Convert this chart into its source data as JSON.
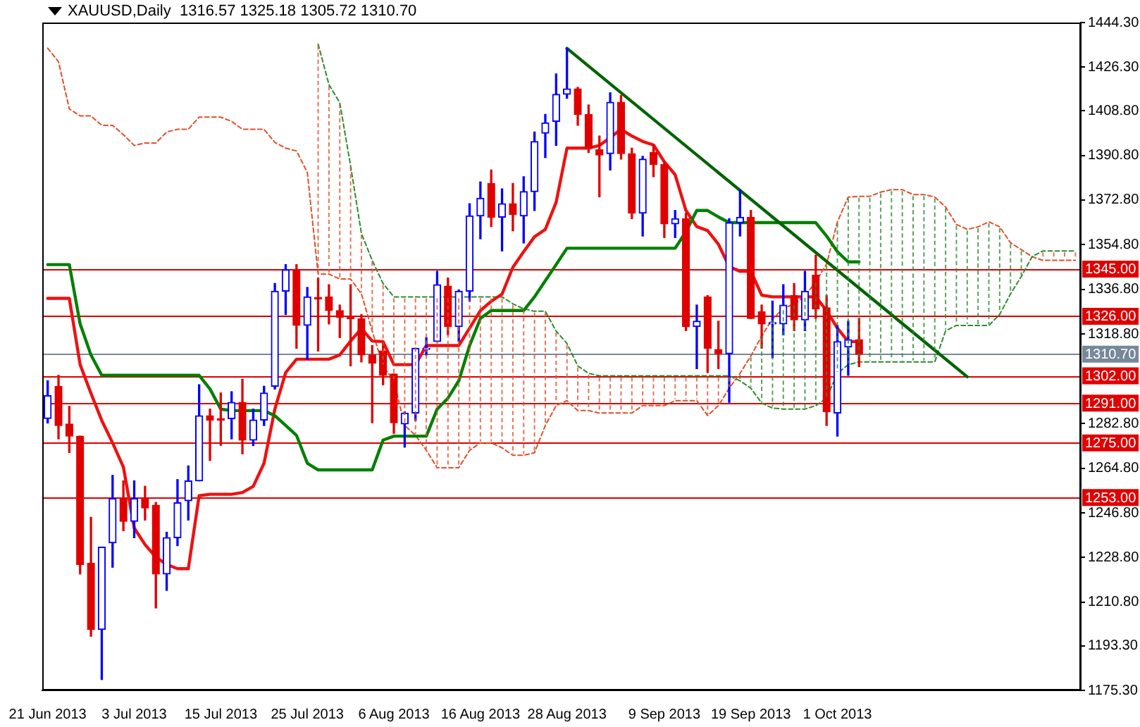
{
  "chart_data": {
    "type": "candlestick",
    "title": "XAUUSD,Daily  1316.57 1325.18 1305.72 1310.70",
    "categories": [
      "21 Jun 2013",
      null,
      null,
      null,
      null,
      null,
      null,
      null,
      "3 Jul 2013",
      null,
      null,
      null,
      null,
      null,
      null,
      null,
      "15 Jul 2013",
      null,
      null,
      null,
      null,
      null,
      null,
      null,
      "25 Jul 2013",
      null,
      null,
      null,
      null,
      null,
      null,
      null,
      "6 Aug 2013",
      null,
      null,
      null,
      null,
      null,
      null,
      null,
      "16 Aug 2013",
      null,
      null,
      null,
      null,
      null,
      null,
      null,
      "28 Aug 2013",
      null,
      null,
      null,
      null,
      null,
      null,
      null,
      null,
      "9 Sep 2013",
      null,
      null,
      null,
      null,
      null,
      null,
      null,
      "19 Sep 2013",
      null,
      null,
      null,
      null,
      null,
      null,
      null,
      "1 Oct 2013",
      null,
      null,
      null,
      null,
      null,
      null,
      null,
      null,
      null,
      null,
      null,
      null,
      null,
      null,
      null,
      null,
      null,
      null,
      null,
      null,
      null,
      null
    ],
    "ohlc": [
      [
        1284.8,
        1300,
        1283,
        1294
      ],
      [
        1297.8,
        1302.2,
        1276.6,
        1282
      ],
      [
        1282.6,
        1289.7,
        1271.1,
        1277.7
      ],
      [
        1277.7,
        1277.7,
        1222.2,
        1226
      ],
      [
        1226.5,
        1245,
        1197.1,
        1199.8
      ],
      [
        1199.8,
        1233,
        1179.7,
        1233
      ],
      [
        1234.7,
        1261.9,
        1224.9,
        1252.6
      ],
      [
        1252.6,
        1259.7,
        1239.6,
        1243.4
      ],
      [
        1243.4,
        1259.7,
        1236.8,
        1252.6
      ],
      [
        1252.6,
        1257.5,
        1243.9,
        1248.8
      ],
      [
        1249.9,
        1251,
        1208.5,
        1222.2
      ],
      [
        1222.2,
        1239,
        1215.6,
        1236.8
      ],
      [
        1236.8,
        1260.2,
        1233.6,
        1250.9
      ],
      [
        1251.7,
        1265.7,
        1243.9,
        1259.7
      ],
      [
        1259.7,
        1298.4,
        1259.7,
        1285.9
      ],
      [
        1285.9,
        1288.6,
        1267.9,
        1284.2
      ],
      [
        1284.5,
        1295.1,
        1274,
        1284.2
      ],
      [
        1284.7,
        1295.6,
        1276.6,
        1291.3
      ],
      [
        1291.3,
        1300.6,
        1270.6,
        1276.1
      ],
      [
        1276.1,
        1288.6,
        1273.9,
        1284.2
      ],
      [
        1284.2,
        1297.8,
        1282,
        1295.1
      ],
      [
        1297.8,
        1339.2,
        1296.7,
        1336.1
      ],
      [
        1336.1,
        1346.8,
        1326.7,
        1344.7
      ],
      [
        1344.7,
        1346.8,
        1313.1,
        1322.3
      ],
      [
        1322.3,
        1337.6,
        1308.7,
        1333.8
      ],
      [
        1333.5,
        1341.4,
        1312,
        1333
      ],
      [
        1333.8,
        1338.7,
        1322.9,
        1328.3
      ],
      [
        1328.3,
        1330.5,
        1317.4,
        1325.6
      ],
      [
        1325.6,
        1338.7,
        1306,
        1325
      ],
      [
        1325,
        1326.7,
        1307.6,
        1310.4
      ],
      [
        1310.4,
        1314.2,
        1283.1,
        1307.1
      ],
      [
        1312,
        1315.8,
        1298.4,
        1302.2
      ],
      [
        1302.7,
        1302.7,
        1278.8,
        1283.1
      ],
      [
        1282.6,
        1287.5,
        1273.3,
        1287
      ],
      [
        1287,
        1313.1,
        1284,
        1313.1
      ],
      [
        1312.6,
        1317.4,
        1310.4,
        1312.6
      ],
      [
        1315.8,
        1344.1,
        1315.8,
        1338.7
      ],
      [
        1338.1,
        1341.4,
        1318.5,
        1321.8
      ],
      [
        1321.8,
        1336.6,
        1315.8,
        1336.1
      ],
      [
        1336.1,
        1371.3,
        1332.1,
        1366.4
      ],
      [
        1366.4,
        1380.1,
        1357.2,
        1373.5
      ],
      [
        1379.5,
        1384.9,
        1362.1,
        1365.9
      ],
      [
        1365.9,
        1377.3,
        1352.3,
        1371.3
      ],
      [
        1371.3,
        1379.5,
        1360.4,
        1367
      ],
      [
        1366.4,
        1382.2,
        1355.5,
        1376.2
      ],
      [
        1376.2,
        1400.2,
        1368.6,
        1396.4
      ],
      [
        1399.7,
        1407.3,
        1389.9,
        1403.9
      ],
      [
        1404.5,
        1423.6,
        1394.8,
        1415.4
      ],
      [
        1415.4,
        1433.9,
        1413.8,
        1417.6
      ],
      [
        1417.6,
        1418.2,
        1402.9,
        1407.3
      ],
      [
        1407.3,
        1411.1,
        1392,
        1393.7
      ],
      [
        1393.1,
        1398.6,
        1374.1,
        1390.9
      ],
      [
        1391.5,
        1416,
        1384.9,
        1412.2
      ],
      [
        1412.2,
        1414.9,
        1389.3,
        1391.5
      ],
      [
        1391.5,
        1393.7,
        1365.3,
        1367.5
      ],
      [
        1367.5,
        1390.4,
        1358.3,
        1389.3
      ],
      [
        1392,
        1394.8,
        1382.2,
        1387.1
      ],
      [
        1387.1,
        1388.2,
        1357.7,
        1363.2
      ],
      [
        1363.2,
        1368.6,
        1357.7,
        1365.3
      ],
      [
        1365.3,
        1367.5,
        1320.2,
        1321.8
      ],
      [
        1321.8,
        1330.5,
        1304.9,
        1324
      ],
      [
        1333.8,
        1334.3,
        1303.3,
        1313.1
      ],
      [
        1312.6,
        1324,
        1304.9,
        1310.9
      ],
      [
        1310.9,
        1365.3,
        1291.3,
        1363.7
      ],
      [
        1363.7,
        1376.8,
        1358.3,
        1365.9
      ],
      [
        1365.9,
        1368.6,
        1325.1,
        1325.1
      ],
      [
        1327.8,
        1330.5,
        1313.1,
        1322.9
      ],
      [
        1322.9,
        1332.1,
        1309.3,
        1323.4
      ],
      [
        1322.9,
        1338.7,
        1318.5,
        1330.5
      ],
      [
        1334.3,
        1339.2,
        1320.2,
        1324.5
      ],
      [
        1324.5,
        1344.1,
        1320.2,
        1336.1
      ],
      [
        1342.5,
        1350.6,
        1325.1,
        1328.9
      ],
      [
        1329.4,
        1334.3,
        1282,
        1287.5
      ],
      [
        1287,
        1322.3,
        1277.7,
        1315.8
      ],
      [
        1313.6,
        1324,
        1302.2,
        1316.6
      ],
      [
        1316.57,
        1325.18,
        1305.72,
        1310.7
      ],
      null,
      null,
      null,
      null,
      null,
      null,
      null,
      null,
      null,
      null,
      null,
      null,
      null,
      null,
      null,
      null,
      null,
      null,
      null,
      null
    ],
    "colors": [
      "#0000ff",
      "#e00000",
      "#e00000",
      "#e00000",
      "#e00000",
      "#0000ff",
      "#0000ff",
      "#e00000",
      "#0000ff",
      "#e00000",
      "#e00000",
      "#0000ff",
      "#0000ff",
      "#0000ff",
      "#0000ff",
      "#e00000",
      "#e00000",
      "#0000ff",
      "#e00000",
      "#0000ff",
      "#0000ff",
      "#0000ff",
      "#0000ff",
      "#e00000",
      "#0000ff",
      "#e00000",
      "#e00000",
      "#e00000",
      "#e00000",
      "#e00000",
      "#e00000",
      "#e00000",
      "#e00000",
      "#0000ff",
      "#0000ff",
      "#0000ff",
      "#0000ff",
      "#e00000",
      "#0000ff",
      "#0000ff",
      "#0000ff",
      "#e00000",
      "#0000ff",
      "#e00000",
      "#0000ff",
      "#0000ff",
      "#0000ff",
      "#0000ff",
      "#0000ff",
      "#e00000",
      "#e00000",
      "#e00000",
      "#0000ff",
      "#e00000",
      "#e00000",
      "#0000ff",
      "#e00000",
      "#e00000",
      "#0000ff",
      "#e00000",
      "#0000ff",
      "#e00000",
      "#e00000",
      "#0000ff",
      "#0000ff",
      "#e00000",
      "#e00000",
      "#0000ff",
      "#0000ff",
      "#e00000",
      "#0000ff",
      "#e00000",
      "#e00000",
      "#0000ff",
      "#0000ff",
      "#e00000",
      null,
      null,
      null,
      null,
      null,
      null,
      null,
      null,
      null,
      null,
      null,
      null,
      null,
      null,
      null,
      null,
      null,
      null,
      null,
      null
    ],
    "series": [
      {
        "type": "line",
        "color": "#ee1111",
        "values": [
          1333.2,
          1333.2,
          1333.2,
          1306.5,
          1295,
          1284,
          1275,
          1265.2,
          1240.7,
          1234,
          1229,
          1226,
          1224.3,
          1224.3,
          1253.7,
          1254.3,
          1254.3,
          1254.3,
          1255,
          1257.5,
          1266.8,
          1288.6,
          1303.3,
          1308.7,
          1308.7,
          1308.7,
          1308.7,
          1310.4,
          1316,
          1321,
          1316,
          1315.8,
          1306.5,
          1306.5,
          1306.5,
          1314.2,
          1314.2,
          1314.2,
          1314.2,
          1321.2,
          1328.3,
          1332,
          1334.9,
          1345.7,
          1352,
          1358,
          1361,
          1371.9,
          1393.7,
          1393.7,
          1393.7,
          1394.8,
          1398,
          1401.3,
          1398.6,
          1396.4,
          1395,
          1388.2,
          1383,
          1368.6,
          1362.1,
          1360.5,
          1355,
          1346,
          1344.1,
          1344.1,
          1334.5,
          1333.8,
          1333.8,
          1333.8,
          1333.8,
          1333.8,
          1328.3,
          1321.2,
          1315.8,
          1315.8,
          null,
          null,
          null,
          null,
          null,
          null,
          null,
          null,
          null,
          null,
          null,
          null,
          null,
          null,
          null,
          null,
          null,
          null,
          null,
          null
        ]
      },
      {
        "type": "line",
        "color": "#008000",
        "values": [
          1346.8,
          1346.8,
          1346.8,
          1322.9,
          1310.4,
          1302.2,
          1302.2,
          1302.2,
          1302.2,
          1302.2,
          1302.2,
          1302.2,
          1302.2,
          1302.2,
          1302.2,
          1296.7,
          1288.6,
          1288,
          1288,
          1288,
          1288,
          1285.9,
          1282,
          1278,
          1266.8,
          1264.1,
          1264.1,
          1264.1,
          1264.1,
          1264.1,
          1264.1,
          1276.1,
          1277.7,
          1277.7,
          1277.7,
          1277.7,
          1288.6,
          1293,
          1300,
          1314.2,
          1325.1,
          1328.3,
          1328.3,
          1328.3,
          1328.3,
          1333.8,
          1340.3,
          1346.8,
          1353.4,
          1353.4,
          1353.4,
          1353.4,
          1353.4,
          1353.4,
          1353.4,
          1353.4,
          1353.4,
          1353.4,
          1353.4,
          1360,
          1368.6,
          1368.6,
          1366,
          1363.7,
          1363.7,
          1363.7,
          1363.7,
          1363.7,
          1363.7,
          1363.7,
          1363.7,
          1363.7,
          1358.3,
          1352,
          1347.9,
          1347.9,
          null,
          null,
          null,
          null,
          null,
          null,
          null,
          null,
          null,
          null,
          null,
          null,
          null,
          null,
          null,
          null,
          null,
          null,
          null,
          null
        ]
      },
      {
        "type": "line",
        "color": "#2e8b2e",
        "line_style": "dashed",
        "values": [
          null,
          null,
          null,
          null,
          null,
          null,
          null,
          null,
          null,
          null,
          null,
          null,
          null,
          null,
          null,
          null,
          null,
          null,
          null,
          null,
          null,
          null,
          null,
          null,
          null,
          1435.6,
          1419.3,
          1412,
          1386.6,
          1359.4,
          1348.5,
          1339.2,
          1333.8,
          1333.8,
          1333.8,
          1333.8,
          1333.8,
          1333.8,
          1333.8,
          1333.8,
          1333.8,
          1333.8,
          1333.8,
          1331,
          1329,
          1328,
          1328,
          1320,
          1315,
          1306,
          1303,
          1302,
          1302,
          1302,
          1302,
          1302,
          1302,
          1302,
          1302,
          1302,
          1302,
          1302,
          1302,
          1302,
          1300,
          1297,
          1291,
          1289,
          1288.6,
          1288.6,
          1288.6,
          1290,
          1293,
          1303,
          1306.5,
          1307.6,
          1307.6,
          1307.6,
          1307.6,
          1307.6,
          1307.6,
          1307.6,
          1307.6,
          1320.1,
          1322.3,
          1322.3,
          1322.3,
          1322.3,
          1326.7,
          1335,
          1342,
          1350,
          1352.3,
          1352.3,
          1352.3,
          1352.3
        ]
      },
      {
        "type": "line",
        "color": "#e0502a",
        "line_style": "dashed",
        "values": [
          1434,
          1428.5,
          1409.5,
          1406.7,
          1406.7,
          1402.9,
          1402.9,
          1399.1,
          1394.8,
          1395.8,
          1395.8,
          1400.2,
          1401.3,
          1401.3,
          1406.2,
          1406.2,
          1406.2,
          1404.5,
          1401.3,
          1401.3,
          1401.3,
          1396,
          1393.7,
          1392.6,
          1383.9,
          1343,
          1343,
          1341,
          1341,
          1335,
          1320,
          1306,
          1300,
          1282,
          1278,
          1272,
          1265,
          1265,
          1265,
          1272,
          1275,
          1275,
          1273,
          1270,
          1270,
          1271,
          1282,
          1290,
          1292,
          1288,
          1288,
          1287,
          1287,
          1287,
          1287,
          1290,
          1290,
          1290,
          1292,
          1292,
          1292,
          1286,
          1290,
          1297,
          1303,
          1310,
          1318,
          1325,
          1329,
          1331,
          1334,
          1340,
          1347,
          1364,
          1374,
          1374.3,
          1374.3,
          1376,
          1377,
          1377,
          1375,
          1375,
          1374,
          1370,
          1363,
          1361,
          1362,
          1364,
          1362,
          1355.6,
          1352.8,
          1350,
          1348.5,
          1348.5,
          1348.5,
          1348.5
        ]
      },
      {
        "type": "line",
        "color": "#006400",
        "values": [
          null,
          null,
          null,
          null,
          null,
          null,
          null,
          null,
          null,
          null,
          null,
          null,
          null,
          null,
          null,
          null,
          null,
          null,
          null,
          null,
          null,
          null,
          null,
          null,
          null,
          null,
          null,
          null,
          null,
          null,
          null,
          null,
          null,
          null,
          null,
          null,
          null,
          null,
          null,
          null,
          null,
          null,
          null,
          null,
          null,
          null,
          null,
          null,
          1433.9,
          null,
          null,
          null,
          null,
          null,
          null,
          null,
          null,
          null,
          null,
          null,
          null,
          null,
          null,
          null,
          null,
          null,
          null,
          null,
          null,
          null,
          null,
          null,
          null,
          null,
          null,
          null,
          null,
          null,
          null,
          null,
          null,
          null,
          null,
          null,
          null,
          1301.6,
          null,
          null,
          null,
          null,
          null,
          null,
          null,
          null,
          null,
          null
        ]
      }
    ],
    "ylim": [
      1175.3,
      1444.3
    ],
    "yticks": [
      {
        "value": 1175.3,
        "label": "1175.30"
      },
      {
        "value": 1193.3,
        "label": "1193.30"
      },
      {
        "value": 1210.8,
        "label": "1210.80"
      },
      {
        "value": 1228.8,
        "label": "1228.80"
      },
      {
        "value": 1246.8,
        "label": "1246.80"
      },
      {
        "value": 1264.8,
        "label": "1264.80"
      },
      {
        "value": 1282.8,
        "label": "1282.80"
      },
      {
        "value": 1318.8,
        "label": "1318.80"
      },
      {
        "value": 1336.8,
        "label": "1336.80"
      },
      {
        "value": 1354.8,
        "label": "1354.80"
      },
      {
        "value": 1372.8,
        "label": "1372.80"
      },
      {
        "value": 1390.8,
        "label": "1390.80"
      },
      {
        "value": 1408.8,
        "label": "1408.80"
      },
      {
        "value": 1426.3,
        "label": "1426.30"
      },
      {
        "value": 1444.3,
        "label": "1444.30"
      }
    ],
    "ref_lines": [
      {
        "axis": "y",
        "value": 1345,
        "label": "1345.00",
        "color": "#e00000"
      },
      {
        "axis": "y",
        "value": 1326,
        "label": "1326.00",
        "color": "#e00000"
      },
      {
        "axis": "y",
        "value": 1310.7,
        "label": "1310.70",
        "color": "#778899"
      },
      {
        "axis": "y",
        "value": 1302,
        "label": "1302.00",
        "color": "#e00000"
      },
      {
        "axis": "y",
        "value": 1291,
        "label": "1291.00",
        "color": "#e00000"
      },
      {
        "axis": "y",
        "value": 1275,
        "label": "1275.00",
        "color": "#e00000"
      },
      {
        "axis": "y",
        "value": 1253,
        "label": "1253.00",
        "color": "#e00000"
      }
    ],
    "legend": false
  }
}
